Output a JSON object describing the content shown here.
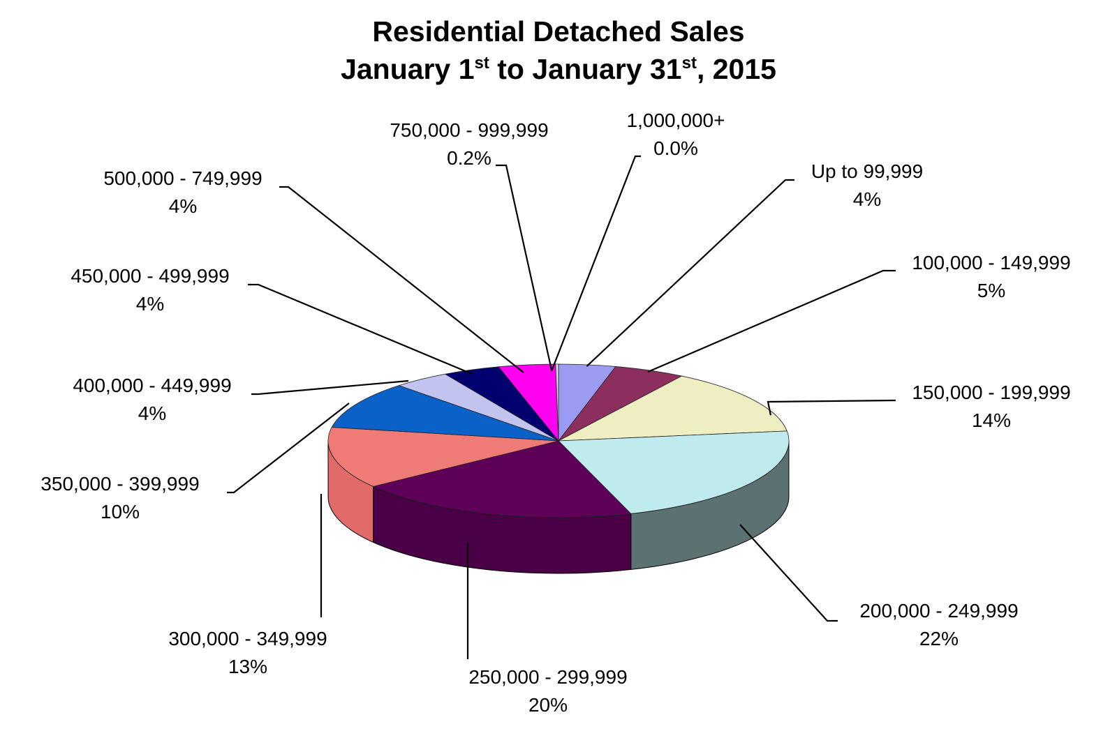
{
  "chart_data": {
    "type": "pie",
    "style": "3d",
    "title_line1": "Residential Detached Sales",
    "title_line2": {
      "pre": "January 1",
      "sup1": "st",
      "mid": " to January 31",
      "sup2": "st",
      "post": ", 2015"
    },
    "slices": [
      {
        "label": "Up to 99,999",
        "value_label": "4%",
        "value": 4,
        "color": "#9b9bf2"
      },
      {
        "label": "100,000 - 149,999",
        "value_label": "5%",
        "value": 5,
        "color": "#8c2e5e"
      },
      {
        "label": "150,000 - 199,999",
        "value_label": "14%",
        "value": 14,
        "color": "#efedc2"
      },
      {
        "label": "200,000 - 249,999",
        "value_label": "22%",
        "value": 22,
        "color": "#bfebef",
        "side_color": "#5c7272"
      },
      {
        "label": "250,000 - 299,999",
        "value_label": "20%",
        "value": 20,
        "color": "#5e0057",
        "side_color": "#4a0046"
      },
      {
        "label": "300,000 - 349,999",
        "value_label": "13%",
        "value": 13,
        "color": "#ef7b77",
        "side_color": "#e06b69"
      },
      {
        "label": "350,000 - 399,999",
        "value_label": "10%",
        "value": 10,
        "color": "#0a62c8"
      },
      {
        "label": "400,000 - 449,999",
        "value_label": "4%",
        "value": 4,
        "color": "#c3c3f0"
      },
      {
        "label": "450,000 - 499,999",
        "value_label": "4%",
        "value": 4,
        "color": "#00006e"
      },
      {
        "label": "500,000 - 749,999",
        "value_label": "4%",
        "value": 4,
        "color": "#ff00f0"
      },
      {
        "label": "750,000 - 999,999",
        "value_label": "0.2%",
        "value": 0.2,
        "color": "#d9d9ec"
      },
      {
        "label": "1,000,000+",
        "value_label": "0.0%",
        "value": 0.0,
        "color": "#2e2e4a"
      }
    ],
    "legend": "none",
    "labels": "outside-with-leader-lines"
  }
}
